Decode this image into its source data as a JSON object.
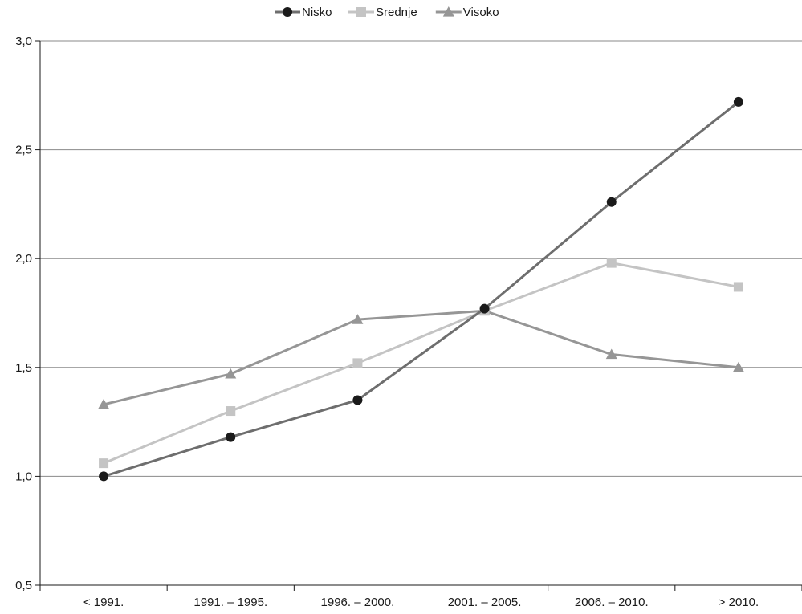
{
  "chart_data": {
    "type": "line",
    "categories": [
      "< 1991.",
      "1991. – 1995.",
      "1996. – 2000.",
      "2001. – 2005.",
      "2006. – 2010.",
      "> 2010."
    ],
    "series": [
      {
        "name": "Nisko",
        "values": [
          1.0,
          1.18,
          1.35,
          1.77,
          2.26,
          2.72
        ],
        "color": "#6e6e6e",
        "marker": "circle",
        "marker_color": "#1a1a1a"
      },
      {
        "name": "Srednje",
        "values": [
          1.06,
          1.3,
          1.52,
          1.76,
          1.98,
          1.87
        ],
        "color": "#c4c4c4",
        "marker": "square",
        "marker_color": "#c4c4c4"
      },
      {
        "name": "Visoko",
        "values": [
          1.33,
          1.47,
          1.72,
          1.76,
          1.56,
          1.5
        ],
        "color": "#969696",
        "marker": "triangle",
        "marker_color": "#969696"
      }
    ],
    "y_ticks": [
      "0,5",
      "1,0",
      "1,5",
      "2,0",
      "2,5",
      "3,0"
    ],
    "ylim": [
      0.5,
      3.0
    ],
    "grid": true,
    "legend_position": "top-center",
    "title": "",
    "xlabel": "",
    "ylabel": ""
  }
}
